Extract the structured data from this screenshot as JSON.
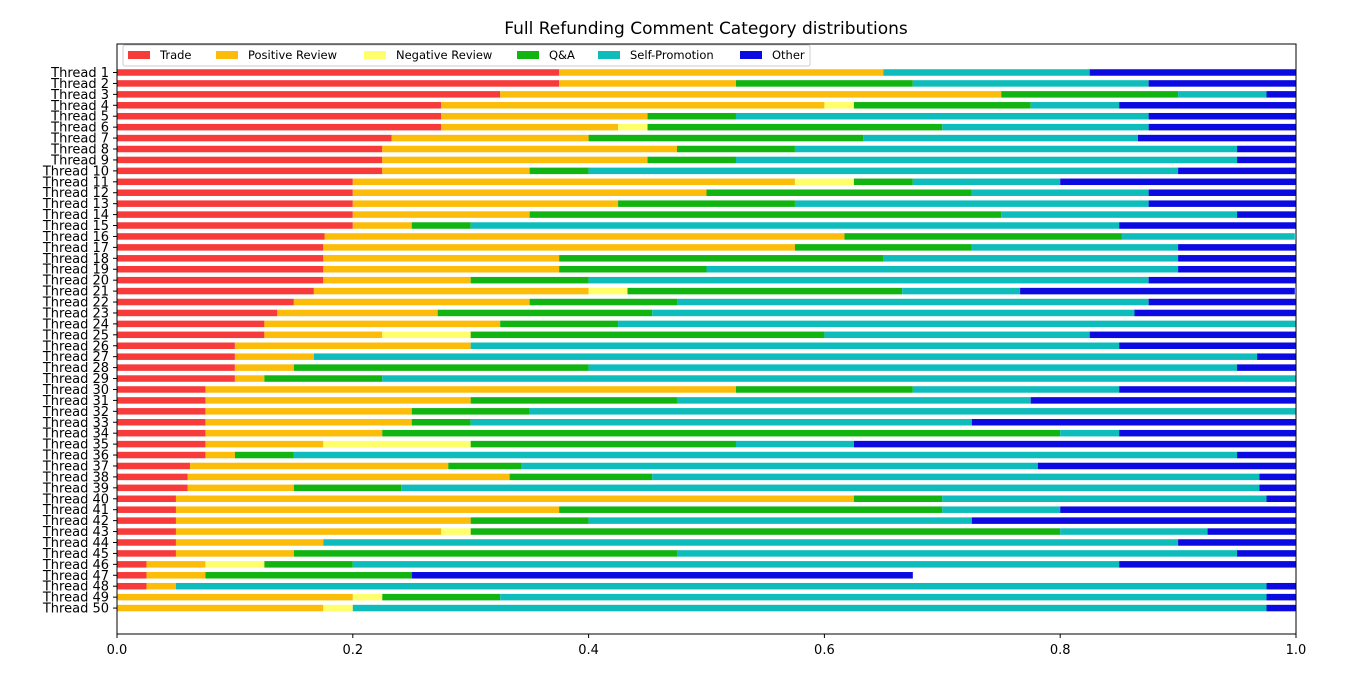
{
  "chart_data": {
    "type": "bar",
    "orientation": "horizontal",
    "stacked": true,
    "title": "Full Refunding Comment Category distributions",
    "xlabel": "",
    "ylabel": "",
    "xlim": [
      0,
      1
    ],
    "x_ticks": [
      "0.0",
      "0.2",
      "0.4",
      "0.6",
      "0.8",
      "1.0"
    ],
    "grid": false,
    "legend_position": "top-left",
    "categories": [
      "Thread 1",
      "Thread 2",
      "Thread 3",
      "Thread 4",
      "Thread 5",
      "Thread 6",
      "Thread 7",
      "Thread 8",
      "Thread 9",
      "Thread 10",
      "Thread 11",
      "Thread 12",
      "Thread 13",
      "Thread 14",
      "Thread 15",
      "Thread 16",
      "Thread 17",
      "Thread 18",
      "Thread 19",
      "Thread 20",
      "Thread 21",
      "Thread 22",
      "Thread 23",
      "Thread 24",
      "Thread 25",
      "Thread 26",
      "Thread 27",
      "Thread 28",
      "Thread 29",
      "Thread 30",
      "Thread 31",
      "Thread 32",
      "Thread 33",
      "Thread 34",
      "Thread 35",
      "Thread 36",
      "Thread 37",
      "Thread 38",
      "Thread 39",
      "Thread 40",
      "Thread 41",
      "Thread 42",
      "Thread 43",
      "Thread 44",
      "Thread 45",
      "Thread 46",
      "Thread 47",
      "Thread 48",
      "Thread 49",
      "Thread 50"
    ],
    "series": [
      {
        "name": "Trade",
        "color": "#f73b3b",
        "values": [
          0.375,
          0.375,
          0.325,
          0.275,
          0.275,
          0.275,
          0.233,
          0.225,
          0.225,
          0.225,
          0.2,
          0.2,
          0.2,
          0.2,
          0.2,
          0.176,
          0.175,
          0.175,
          0.175,
          0.175,
          0.167,
          0.15,
          0.136,
          0.125,
          0.125,
          0.1,
          0.1,
          0.1,
          0.1,
          0.075,
          0.075,
          0.075,
          0.075,
          0.075,
          0.075,
          0.075,
          0.062,
          0.06,
          0.06,
          0.05,
          0.05,
          0.05,
          0.05,
          0.05,
          0.05,
          0.025,
          0.025,
          0.025,
          0,
          0
        ]
      },
      {
        "name": "Positive Review",
        "color": "#fbbd09",
        "values": [
          0.275,
          0.15,
          0.425,
          0.325,
          0.175,
          0.15,
          0.167,
          0.25,
          0.225,
          0.125,
          0.375,
          0.3,
          0.225,
          0.15,
          0.05,
          0.441,
          0.4,
          0.2,
          0.2,
          0.125,
          0.233,
          0.2,
          0.136,
          0.2,
          0.1,
          0.2,
          0.067,
          0.05,
          0.025,
          0.45,
          0.225,
          0.175,
          0.175,
          0.15,
          0.1,
          0.025,
          0.219,
          0.273,
          0.09,
          0.575,
          0.325,
          0.25,
          0.225,
          0.125,
          0.1,
          0.05,
          0.05,
          0.025,
          0.2,
          0.175
        ]
      },
      {
        "name": "Negative Review",
        "color": "#ffff6b",
        "values": [
          0,
          0,
          0,
          0.025,
          0,
          0.025,
          0,
          0,
          0,
          0,
          0.05,
          0,
          0,
          0,
          0,
          0,
          0,
          0,
          0,
          0,
          0.033,
          0,
          0,
          0,
          0.075,
          0,
          0,
          0,
          0,
          0,
          0,
          0,
          0,
          0,
          0.125,
          0,
          0,
          0,
          0,
          0,
          0,
          0,
          0.025,
          0,
          0,
          0.05,
          0,
          0,
          0.025,
          0.025
        ]
      },
      {
        "name": "Q&A",
        "color": "#11b411",
        "values": [
          0,
          0.15,
          0.15,
          0.15,
          0.075,
          0.25,
          0.233,
          0.1,
          0.075,
          0.05,
          0.05,
          0.225,
          0.15,
          0.4,
          0.05,
          0.235,
          0.15,
          0.275,
          0.125,
          0.1,
          0.233,
          0.125,
          0.182,
          0.1,
          0.3,
          0,
          0,
          0.25,
          0.1,
          0.15,
          0.175,
          0.1,
          0.05,
          0.575,
          0.225,
          0.05,
          0.062,
          0.121,
          0.091,
          0.075,
          0.325,
          0.1,
          0.5,
          0,
          0.325,
          0.075,
          0.175,
          0,
          0.1,
          0
        ]
      },
      {
        "name": "Self-Promotion",
        "color": "#0fbcbc",
        "values": [
          0.175,
          0.2,
          0.075,
          0.075,
          0.35,
          0.175,
          0.233,
          0.375,
          0.425,
          0.5,
          0.125,
          0.15,
          0.3,
          0.2,
          0.55,
          0.147,
          0.175,
          0.25,
          0.4,
          0.475,
          0.1,
          0.4,
          0.409,
          0.575,
          0.225,
          0.55,
          0.8,
          0.55,
          0.775,
          0.175,
          0.3,
          0.65,
          0.425,
          0.05,
          0.1,
          0.8,
          0.438,
          0.515,
          0.728,
          0.275,
          0.1,
          0.325,
          0.125,
          0.725,
          0.475,
          0.65,
          0,
          0.925,
          0.65,
          0.775
        ]
      },
      {
        "name": "Other",
        "color": "#0a0ae1",
        "values": [
          0.175,
          0.125,
          0.025,
          0.15,
          0.125,
          0.125,
          0.134,
          0.05,
          0.05,
          0.1,
          0.2,
          0.125,
          0.125,
          0.05,
          0.15,
          0,
          0.1,
          0.1,
          0.1,
          0.125,
          0.233,
          0.125,
          0.137,
          0,
          0.175,
          0.15,
          0.033,
          0.05,
          0,
          0.15,
          0.225,
          0,
          0.275,
          0.15,
          0.375,
          0.05,
          0.219,
          0.031,
          0.031,
          0.025,
          0.2,
          0.275,
          0.075,
          0.1,
          0.05,
          0.15,
          0.425,
          0.025,
          0.025,
          0.025
        ]
      }
    ]
  }
}
